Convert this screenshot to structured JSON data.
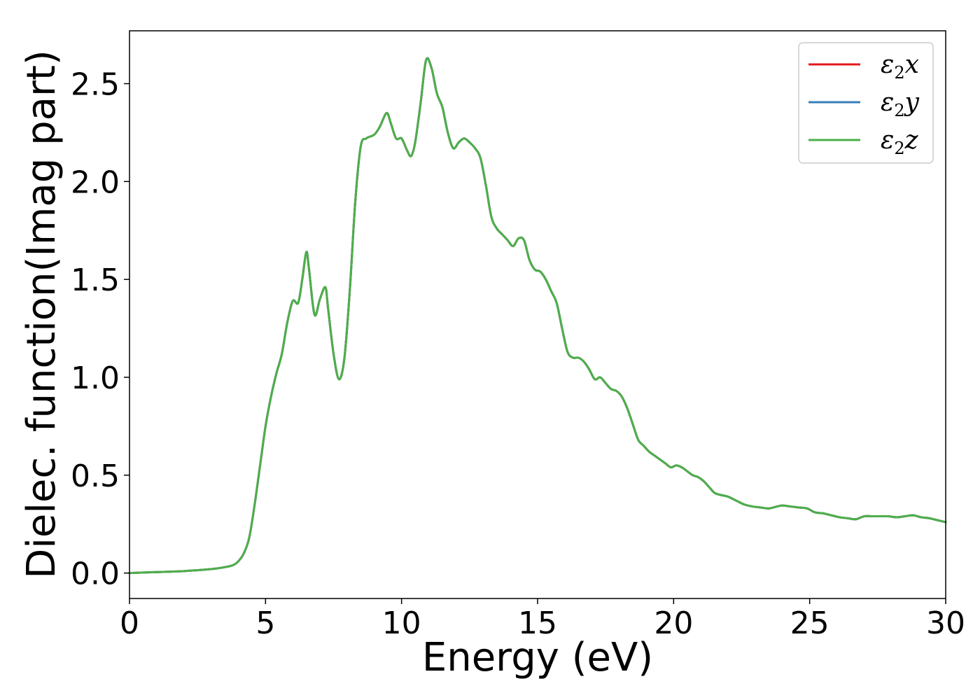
{
  "chart_data": {
    "type": "line",
    "title": "",
    "xlabel": "Energy (eV)",
    "ylabel": "Dielec. function(Imag part)",
    "xlim": [
      0,
      30
    ],
    "ylim": [
      -0.13,
      2.77
    ],
    "xticks": [
      0,
      5,
      10,
      15,
      20,
      25,
      30
    ],
    "xtick_labels": [
      "0",
      "5",
      "10",
      "15",
      "20",
      "25",
      "30"
    ],
    "yticks": [
      0.0,
      0.5,
      1.0,
      1.5,
      2.0,
      2.5
    ],
    "ytick_labels": [
      "0.0",
      "0.5",
      "1.0",
      "1.5",
      "2.0",
      "2.5"
    ],
    "grid": false,
    "legend_position": "top-right",
    "x": [
      0,
      1,
      2,
      3,
      3.5,
      3.8,
      4.0,
      4.2,
      4.4,
      4.6,
      4.8,
      5.0,
      5.2,
      5.4,
      5.6,
      5.8,
      6.0,
      6.2,
      6.35,
      6.5,
      6.6,
      6.8,
      7.0,
      7.2,
      7.3,
      7.5,
      7.7,
      7.9,
      8.1,
      8.3,
      8.5,
      8.7,
      9.0,
      9.2,
      9.45,
      9.6,
      9.8,
      10.0,
      10.2,
      10.35,
      10.5,
      10.7,
      10.9,
      11.1,
      11.3,
      11.5,
      11.7,
      11.9,
      12.1,
      12.3,
      12.5,
      12.7,
      12.9,
      13.1,
      13.3,
      13.5,
      13.7,
      13.9,
      14.1,
      14.3,
      14.5,
      14.7,
      14.9,
      15.1,
      15.3,
      15.5,
      15.7,
      15.9,
      16.1,
      16.3,
      16.5,
      16.7,
      16.9,
      17.1,
      17.3,
      17.5,
      17.7,
      17.9,
      18.1,
      18.3,
      18.5,
      18.7,
      18.9,
      19.1,
      19.3,
      19.5,
      19.7,
      19.9,
      20.1,
      20.3,
      20.5,
      20.7,
      20.9,
      21.1,
      21.3,
      21.5,
      21.7,
      22.0,
      22.3,
      22.6,
      22.9,
      23.2,
      23.5,
      23.8,
      24.0,
      24.3,
      24.6,
      24.9,
      25.2,
      25.5,
      25.8,
      26.1,
      26.4,
      26.7,
      27.0,
      27.3,
      27.6,
      27.9,
      28.2,
      28.5,
      28.8,
      29.1,
      29.4,
      29.7,
      30.0
    ],
    "series": [
      {
        "name": "ε2x",
        "color": "#e41a1c",
        "values": [
          0.0,
          0.005,
          0.01,
          0.02,
          0.03,
          0.04,
          0.06,
          0.1,
          0.18,
          0.35,
          0.55,
          0.75,
          0.9,
          1.02,
          1.12,
          1.28,
          1.39,
          1.38,
          1.5,
          1.64,
          1.55,
          1.32,
          1.4,
          1.46,
          1.35,
          1.12,
          0.99,
          1.1,
          1.45,
          1.9,
          2.18,
          2.22,
          2.24,
          2.28,
          2.35,
          2.3,
          2.22,
          2.22,
          2.16,
          2.13,
          2.2,
          2.4,
          2.62,
          2.58,
          2.45,
          2.38,
          2.25,
          2.17,
          2.2,
          2.22,
          2.2,
          2.17,
          2.12,
          1.98,
          1.82,
          1.76,
          1.73,
          1.7,
          1.67,
          1.71,
          1.7,
          1.6,
          1.55,
          1.54,
          1.5,
          1.44,
          1.38,
          1.25,
          1.13,
          1.1,
          1.1,
          1.08,
          1.04,
          0.99,
          1.0,
          0.97,
          0.94,
          0.93,
          0.9,
          0.84,
          0.76,
          0.68,
          0.65,
          0.62,
          0.6,
          0.58,
          0.56,
          0.54,
          0.55,
          0.54,
          0.52,
          0.5,
          0.49,
          0.47,
          0.44,
          0.41,
          0.4,
          0.39,
          0.37,
          0.35,
          0.34,
          0.335,
          0.33,
          0.34,
          0.345,
          0.34,
          0.335,
          0.33,
          0.31,
          0.305,
          0.295,
          0.285,
          0.28,
          0.275,
          0.29,
          0.29,
          0.29,
          0.29,
          0.285,
          0.29,
          0.295,
          0.285,
          0.28,
          0.27,
          0.26
        ]
      },
      {
        "name": "ε2y",
        "color": "#377eb8",
        "values": [
          0.0,
          0.005,
          0.01,
          0.02,
          0.03,
          0.04,
          0.06,
          0.1,
          0.18,
          0.35,
          0.55,
          0.75,
          0.9,
          1.02,
          1.12,
          1.28,
          1.39,
          1.38,
          1.5,
          1.64,
          1.55,
          1.32,
          1.4,
          1.46,
          1.35,
          1.12,
          0.99,
          1.1,
          1.45,
          1.9,
          2.18,
          2.22,
          2.24,
          2.28,
          2.35,
          2.3,
          2.22,
          2.22,
          2.16,
          2.13,
          2.2,
          2.4,
          2.62,
          2.58,
          2.45,
          2.38,
          2.25,
          2.17,
          2.2,
          2.22,
          2.2,
          2.17,
          2.12,
          1.98,
          1.82,
          1.76,
          1.73,
          1.7,
          1.67,
          1.71,
          1.7,
          1.6,
          1.55,
          1.54,
          1.5,
          1.44,
          1.38,
          1.25,
          1.13,
          1.1,
          1.1,
          1.08,
          1.04,
          0.99,
          1.0,
          0.97,
          0.94,
          0.93,
          0.9,
          0.84,
          0.76,
          0.68,
          0.65,
          0.62,
          0.6,
          0.58,
          0.56,
          0.54,
          0.55,
          0.54,
          0.52,
          0.5,
          0.49,
          0.47,
          0.44,
          0.41,
          0.4,
          0.39,
          0.37,
          0.35,
          0.34,
          0.335,
          0.33,
          0.34,
          0.345,
          0.34,
          0.335,
          0.33,
          0.31,
          0.305,
          0.295,
          0.285,
          0.28,
          0.275,
          0.29,
          0.29,
          0.29,
          0.29,
          0.285,
          0.29,
          0.295,
          0.285,
          0.28,
          0.27,
          0.26
        ]
      },
      {
        "name": "ε2z",
        "color": "#4daf4a",
        "values": [
          0.0,
          0.005,
          0.01,
          0.02,
          0.03,
          0.04,
          0.06,
          0.1,
          0.18,
          0.35,
          0.55,
          0.75,
          0.9,
          1.02,
          1.12,
          1.28,
          1.39,
          1.38,
          1.5,
          1.64,
          1.55,
          1.32,
          1.4,
          1.46,
          1.35,
          1.12,
          0.99,
          1.1,
          1.45,
          1.9,
          2.18,
          2.22,
          2.24,
          2.28,
          2.35,
          2.3,
          2.22,
          2.22,
          2.16,
          2.13,
          2.2,
          2.4,
          2.62,
          2.58,
          2.45,
          2.38,
          2.25,
          2.17,
          2.2,
          2.22,
          2.2,
          2.17,
          2.12,
          1.98,
          1.82,
          1.76,
          1.73,
          1.7,
          1.67,
          1.71,
          1.7,
          1.6,
          1.55,
          1.54,
          1.5,
          1.44,
          1.38,
          1.25,
          1.13,
          1.1,
          1.1,
          1.08,
          1.04,
          0.99,
          1.0,
          0.97,
          0.94,
          0.93,
          0.9,
          0.84,
          0.76,
          0.68,
          0.65,
          0.62,
          0.6,
          0.58,
          0.56,
          0.54,
          0.55,
          0.54,
          0.52,
          0.5,
          0.49,
          0.47,
          0.44,
          0.41,
          0.4,
          0.39,
          0.37,
          0.35,
          0.34,
          0.335,
          0.33,
          0.34,
          0.345,
          0.34,
          0.335,
          0.33,
          0.31,
          0.305,
          0.295,
          0.285,
          0.28,
          0.275,
          0.29,
          0.29,
          0.29,
          0.29,
          0.285,
          0.29,
          0.295,
          0.285,
          0.28,
          0.27,
          0.26
        ]
      }
    ]
  }
}
